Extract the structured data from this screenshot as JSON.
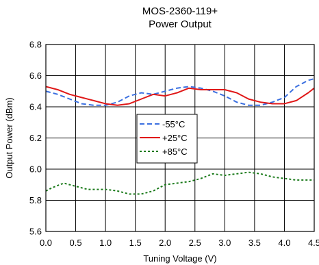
{
  "chart_data": {
    "type": "line",
    "title_lines": [
      "MOS-2360-119+",
      "Power Output"
    ],
    "xlabel": "Tuning Voltage (V)",
    "ylabel": "Output Power (dBm)",
    "xlim": [
      0.0,
      4.5
    ],
    "ylim": [
      5.6,
      6.8
    ],
    "x_ticks": [
      "0.0",
      "0.5",
      "1.0",
      "1.5",
      "2.0",
      "2.5",
      "3.0",
      "3.5",
      "4.0",
      "4.5"
    ],
    "y_ticks": [
      "5.6",
      "5.8",
      "6.0",
      "6.2",
      "6.4",
      "6.6",
      "6.8"
    ],
    "grid": true,
    "legend_position": "center",
    "series": [
      {
        "name": "-55°C",
        "color": "#3a6fe0",
        "dash": "dashed",
        "points": [
          [
            0.0,
            6.5
          ],
          [
            0.2,
            6.48
          ],
          [
            0.4,
            6.45
          ],
          [
            0.6,
            6.42
          ],
          [
            0.8,
            6.41
          ],
          [
            1.0,
            6.41
          ],
          [
            1.2,
            6.43
          ],
          [
            1.4,
            6.47
          ],
          [
            1.6,
            6.49
          ],
          [
            1.8,
            6.48
          ],
          [
            2.0,
            6.5
          ],
          [
            2.2,
            6.52
          ],
          [
            2.4,
            6.53
          ],
          [
            2.6,
            6.52
          ],
          [
            2.8,
            6.5
          ],
          [
            3.0,
            6.47
          ],
          [
            3.2,
            6.43
          ],
          [
            3.4,
            6.41
          ],
          [
            3.6,
            6.41
          ],
          [
            3.8,
            6.43
          ],
          [
            4.0,
            6.46
          ],
          [
            4.2,
            6.53
          ],
          [
            4.4,
            6.57
          ],
          [
            4.5,
            6.58
          ]
        ]
      },
      {
        "name": "+25°C",
        "color": "#e01818",
        "dash": "solid",
        "points": [
          [
            0.0,
            6.53
          ],
          [
            0.2,
            6.51
          ],
          [
            0.4,
            6.48
          ],
          [
            0.6,
            6.46
          ],
          [
            0.8,
            6.44
          ],
          [
            1.0,
            6.42
          ],
          [
            1.2,
            6.41
          ],
          [
            1.4,
            6.42
          ],
          [
            1.6,
            6.45
          ],
          [
            1.8,
            6.48
          ],
          [
            2.0,
            6.47
          ],
          [
            2.2,
            6.49
          ],
          [
            2.4,
            6.52
          ],
          [
            2.6,
            6.51
          ],
          [
            2.8,
            6.51
          ],
          [
            3.0,
            6.51
          ],
          [
            3.2,
            6.49
          ],
          [
            3.4,
            6.45
          ],
          [
            3.6,
            6.43
          ],
          [
            3.8,
            6.42
          ],
          [
            4.0,
            6.42
          ],
          [
            4.2,
            6.44
          ],
          [
            4.4,
            6.49
          ],
          [
            4.5,
            6.52
          ]
        ]
      },
      {
        "name": "+85°C",
        "color": "#1a7a1a",
        "dash": "dotted",
        "points": [
          [
            0.0,
            5.86
          ],
          [
            0.1,
            5.88
          ],
          [
            0.3,
            5.91
          ],
          [
            0.5,
            5.89
          ],
          [
            0.7,
            5.87
          ],
          [
            1.0,
            5.87
          ],
          [
            1.2,
            5.86
          ],
          [
            1.4,
            5.84
          ],
          [
            1.6,
            5.84
          ],
          [
            1.8,
            5.86
          ],
          [
            2.0,
            5.9
          ],
          [
            2.2,
            5.91
          ],
          [
            2.4,
            5.92
          ],
          [
            2.6,
            5.94
          ],
          [
            2.8,
            5.97
          ],
          [
            3.0,
            5.96
          ],
          [
            3.2,
            5.97
          ],
          [
            3.4,
            5.98
          ],
          [
            3.6,
            5.97
          ],
          [
            3.8,
            5.95
          ],
          [
            4.0,
            5.94
          ],
          [
            4.2,
            5.93
          ],
          [
            4.4,
            5.93
          ],
          [
            4.5,
            5.93
          ]
        ]
      }
    ]
  }
}
